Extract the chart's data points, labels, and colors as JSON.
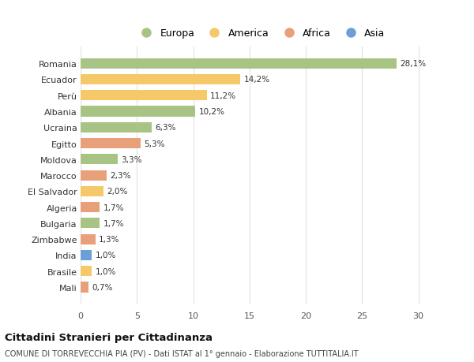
{
  "countries": [
    "Romania",
    "Ecuador",
    "Perù",
    "Albania",
    "Ucraina",
    "Egitto",
    "Moldova",
    "Marocco",
    "El Salvador",
    "Algeria",
    "Bulgaria",
    "Zimbabwe",
    "India",
    "Brasile",
    "Mali"
  ],
  "values": [
    28.1,
    14.2,
    11.2,
    10.2,
    6.3,
    5.3,
    3.3,
    2.3,
    2.0,
    1.7,
    1.7,
    1.3,
    1.0,
    1.0,
    0.7
  ],
  "labels": [
    "28,1%",
    "14,2%",
    "11,2%",
    "10,2%",
    "6,3%",
    "5,3%",
    "3,3%",
    "2,3%",
    "2,0%",
    "1,7%",
    "1,7%",
    "1,3%",
    "1,0%",
    "1,0%",
    "0,7%"
  ],
  "continents": [
    "Europa",
    "America",
    "America",
    "Europa",
    "Europa",
    "Africa",
    "Europa",
    "Africa",
    "America",
    "Africa",
    "Europa",
    "Africa",
    "Asia",
    "America",
    "Africa"
  ],
  "continent_colors": {
    "Europa": "#a8c484",
    "America": "#f5c96a",
    "Africa": "#e8a07a",
    "Asia": "#6a9fd8"
  },
  "legend_order": [
    "Europa",
    "America",
    "Africa",
    "Asia"
  ],
  "title": "Cittadini Stranieri per Cittadinanza",
  "subtitle": "COMUNE DI TORREVECCHIA PIA (PV) - Dati ISTAT al 1° gennaio - Elaborazione TUTTITALIA.IT",
  "xlim": [
    0,
    32
  ],
  "xticks": [
    0,
    5,
    10,
    15,
    20,
    25,
    30
  ],
  "background_color": "#ffffff",
  "grid_color": "#e0e0e0"
}
